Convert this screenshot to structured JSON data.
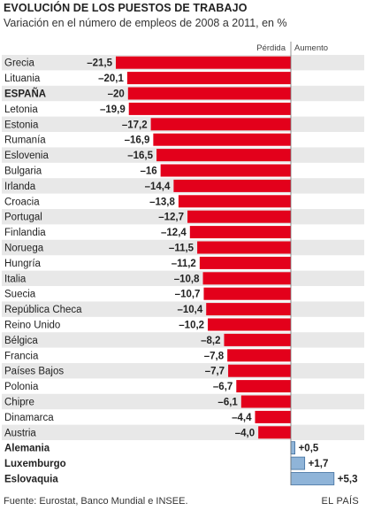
{
  "header": {
    "title": "EVOLUCIÓN DE LOS PUESTOS DE TRABAJO",
    "subtitle": "Variación en el número de empleos de 2008 a 2011, en %"
  },
  "legend": {
    "negative": "Pérdida",
    "positive": "Aumento"
  },
  "footer": {
    "source": "Fuente: Eurostat, Banco Mundial e INSEE.",
    "brand": "EL PAÍS"
  },
  "colors": {
    "negative": "#e3001b",
    "positive": "#8fb4d8",
    "positive_border": "#3f6f9f",
    "stripe": "#e8e8e8"
  },
  "chart_data": {
    "type": "bar",
    "orientation": "horizontal",
    "title": "EVOLUCIÓN DE LOS PUESTOS DE TRABAJO",
    "subtitle": "Variación en el número de empleos de 2008 a 2011, en %",
    "categories": [
      "Grecia",
      "Lituania",
      "ESPAÑA",
      "Letonia",
      "Estonia",
      "Rumanía",
      "Eslovenia",
      "Bulgaria",
      "Irlanda",
      "Croacia",
      "Portugal",
      "Finlandia",
      "Noruega",
      "Hungría",
      "Italia",
      "Suecia",
      "República Checa",
      "Reino Unido",
      "Bélgica",
      "Francia",
      "Países Bajos",
      "Polonia",
      "Chipre",
      "Dinamarca",
      "Austria",
      "Alemania",
      "Luxemburgo",
      "Eslovaquia"
    ],
    "values": [
      -21.5,
      -20.1,
      -20,
      -19.9,
      -17.2,
      -16.9,
      -16.5,
      -16,
      -14.4,
      -13.8,
      -12.7,
      -12.4,
      -11.5,
      -11.2,
      -10.8,
      -10.7,
      -10.4,
      -10.2,
      -8.2,
      -7.8,
      -7.7,
      -6.7,
      -6.1,
      -4.4,
      -4.0,
      0.5,
      1.7,
      5.3
    ],
    "labels": [
      "–21,5",
      "–20,1",
      "–20",
      "–19,9",
      "–17,2",
      "–16,9",
      "–16,5",
      "–16",
      "–14,4",
      "–13,8",
      "–12,7",
      "–12,4",
      "–11,5",
      "–11,2",
      "–10,8",
      "–10,7",
      "–10,4",
      "–10,2",
      "–8,2",
      "–7,8",
      "–7,7",
      "–6,7",
      "–6,1",
      "–4,4",
      "–4,0",
      "+0,5",
      "+1,7",
      "+5,3"
    ],
    "bold_categories": [
      "ESPAÑA",
      "Alemania",
      "Luxemburgo",
      "Eslovaquia"
    ],
    "striped_rows": [
      0,
      2,
      4,
      6,
      8,
      10,
      12,
      14,
      16,
      18,
      20,
      22,
      24
    ],
    "xlim": [
      -21.5,
      5.3
    ],
    "grid": false,
    "legend_placement": "top"
  }
}
